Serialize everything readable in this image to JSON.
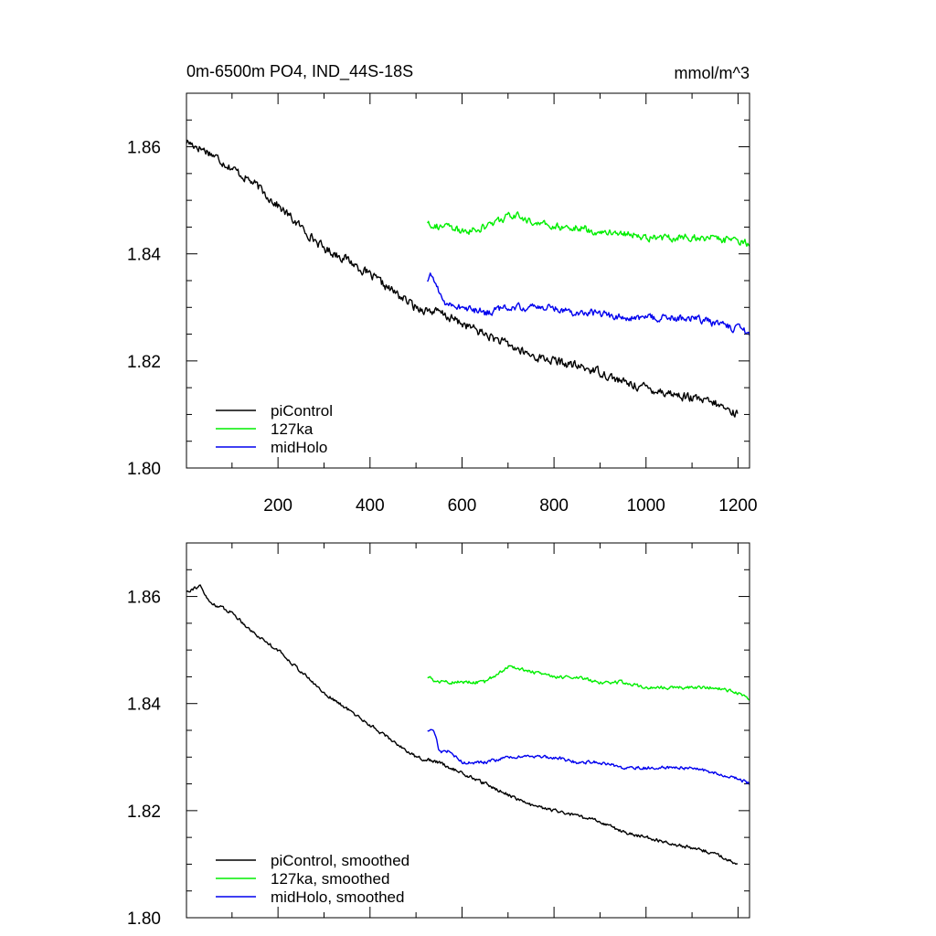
{
  "chart_data": [
    {
      "type": "line",
      "title": "0m-6500m PO4, IND_44S-18S",
      "units_label": "mmol/m^3",
      "xlabel": "",
      "ylabel": "",
      "xlim": [
        1,
        1225
      ],
      "ylim": [
        1.8,
        1.87
      ],
      "x_ticks": [
        200,
        400,
        600,
        800,
        1000,
        1200
      ],
      "x_tick_labels": [
        "200",
        "400",
        "600",
        "800",
        "1000",
        "1200"
      ],
      "y_ticks": [
        1.8,
        1.82,
        1.84,
        1.86
      ],
      "y_tick_labels": [
        "1.80",
        "1.82",
        "1.84",
        "1.86"
      ],
      "grid": false,
      "legend_position": "bottom-left",
      "series": [
        {
          "name": "piControl",
          "color": "#000000",
          "noise": 0.0013,
          "anchors": [
            [
              1,
              1.861
            ],
            [
              50,
              1.859
            ],
            [
              100,
              1.856
            ],
            [
              150,
              1.853
            ],
            [
              200,
              1.849
            ],
            [
              250,
              1.845
            ],
            [
              300,
              1.841
            ],
            [
              350,
              1.839
            ],
            [
              400,
              1.836
            ],
            [
              450,
              1.833
            ],
            [
              500,
              1.83
            ],
            [
              550,
              1.829
            ],
            [
              600,
              1.827
            ],
            [
              650,
              1.825
            ],
            [
              700,
              1.823
            ],
            [
              750,
              1.821
            ],
            [
              800,
              1.82
            ],
            [
              850,
              1.819
            ],
            [
              900,
              1.818
            ],
            [
              950,
              1.816
            ],
            [
              1000,
              1.815
            ],
            [
              1050,
              1.814
            ],
            [
              1100,
              1.813
            ],
            [
              1150,
              1.812
            ],
            [
              1200,
              1.81
            ]
          ]
        },
        {
          "name": "127ka",
          "color": "#00ee00",
          "noise": 0.0011,
          "anchors": [
            [
              525,
              1.846
            ],
            [
              550,
              1.845
            ],
            [
              575,
              1.845
            ],
            [
              600,
              1.844
            ],
            [
              650,
              1.845
            ],
            [
              700,
              1.847
            ],
            [
              725,
              1.847
            ],
            [
              750,
              1.846
            ],
            [
              800,
              1.845
            ],
            [
              850,
              1.845
            ],
            [
              900,
              1.844
            ],
            [
              950,
              1.844
            ],
            [
              1000,
              1.843
            ],
            [
              1050,
              1.843
            ],
            [
              1100,
              1.843
            ],
            [
              1150,
              1.843
            ],
            [
              1200,
              1.842
            ],
            [
              1225,
              1.842
            ]
          ]
        },
        {
          "name": "midHolo",
          "color": "#0000ee",
          "noise": 0.0011,
          "anchors": [
            [
              525,
              1.835
            ],
            [
              535,
              1.836
            ],
            [
              545,
              1.834
            ],
            [
              560,
              1.831
            ],
            [
              600,
              1.83
            ],
            [
              650,
              1.829
            ],
            [
              700,
              1.83
            ],
            [
              750,
              1.83
            ],
            [
              800,
              1.83
            ],
            [
              850,
              1.829
            ],
            [
              900,
              1.829
            ],
            [
              950,
              1.828
            ],
            [
              1000,
              1.828
            ],
            [
              1050,
              1.828
            ],
            [
              1100,
              1.828
            ],
            [
              1150,
              1.827
            ],
            [
              1200,
              1.826
            ],
            [
              1225,
              1.825
            ]
          ]
        }
      ]
    },
    {
      "type": "line",
      "title": "",
      "xlabel": "",
      "ylabel": "",
      "xlim": [
        1,
        1225
      ],
      "ylim": [
        1.8,
        1.87
      ],
      "x_ticks": [
        200,
        400,
        600,
        800,
        1000,
        1200
      ],
      "x_tick_labels": [],
      "y_ticks": [
        1.8,
        1.82,
        1.84,
        1.86
      ],
      "y_tick_labels": [
        "1.80",
        "1.82",
        "1.84",
        "1.86"
      ],
      "grid": false,
      "legend_position": "bottom-left",
      "series": [
        {
          "name": "piControl, smoothed",
          "color": "#000000",
          "noise": 0.0005,
          "anchors": [
            [
              1,
              1.861
            ],
            [
              30,
              1.862
            ],
            [
              50,
              1.859
            ],
            [
              100,
              1.857
            ],
            [
              150,
              1.853
            ],
            [
              200,
              1.85
            ],
            [
              250,
              1.846
            ],
            [
              300,
              1.842
            ],
            [
              350,
              1.839
            ],
            [
              400,
              1.836
            ],
            [
              450,
              1.833
            ],
            [
              500,
              1.83
            ],
            [
              550,
              1.829
            ],
            [
              600,
              1.827
            ],
            [
              650,
              1.825
            ],
            [
              700,
              1.823
            ],
            [
              750,
              1.821
            ],
            [
              800,
              1.82
            ],
            [
              850,
              1.819
            ],
            [
              900,
              1.818
            ],
            [
              950,
              1.816
            ],
            [
              1000,
              1.815
            ],
            [
              1050,
              1.814
            ],
            [
              1100,
              1.813
            ],
            [
              1150,
              1.812
            ],
            [
              1200,
              1.81
            ]
          ]
        },
        {
          "name": "127ka, smoothed",
          "color": "#00ee00",
          "noise": 0.0005,
          "anchors": [
            [
              525,
              1.845
            ],
            [
              550,
              1.844
            ],
            [
              600,
              1.844
            ],
            [
              650,
              1.844
            ],
            [
              700,
              1.847
            ],
            [
              750,
              1.846
            ],
            [
              800,
              1.845
            ],
            [
              850,
              1.845
            ],
            [
              900,
              1.844
            ],
            [
              950,
              1.844
            ],
            [
              1000,
              1.843
            ],
            [
              1050,
              1.843
            ],
            [
              1100,
              1.843
            ],
            [
              1150,
              1.843
            ],
            [
              1200,
              1.842
            ],
            [
              1225,
              1.841
            ]
          ]
        },
        {
          "name": "midHolo, smoothed",
          "color": "#0000ee",
          "noise": 0.0005,
          "anchors": [
            [
              525,
              1.835
            ],
            [
              540,
              1.835
            ],
            [
              550,
              1.831
            ],
            [
              575,
              1.831
            ],
            [
              600,
              1.829
            ],
            [
              650,
              1.829
            ],
            [
              700,
              1.83
            ],
            [
              750,
              1.83
            ],
            [
              800,
              1.83
            ],
            [
              850,
              1.829
            ],
            [
              900,
              1.829
            ],
            [
              950,
              1.828
            ],
            [
              1000,
              1.828
            ],
            [
              1050,
              1.828
            ],
            [
              1100,
              1.828
            ],
            [
              1150,
              1.827
            ],
            [
              1200,
              1.826
            ],
            [
              1225,
              1.825
            ]
          ]
        }
      ]
    }
  ]
}
